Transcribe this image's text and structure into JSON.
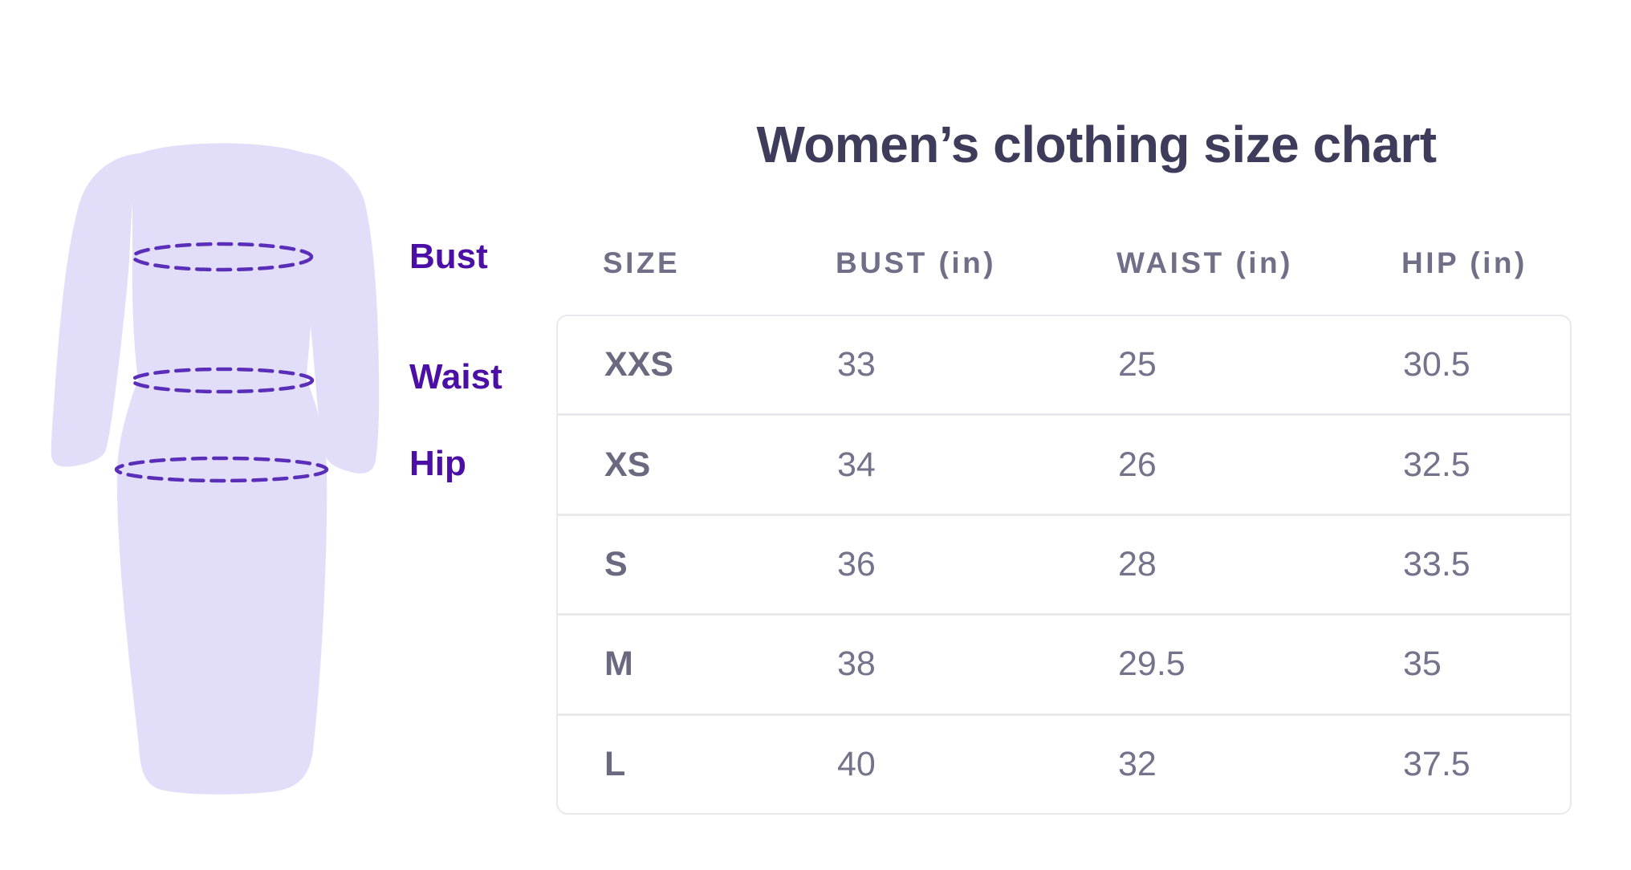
{
  "title": "Women’s clothing size chart",
  "diagram": {
    "description": "dress-silhouette-with-measurement-lines",
    "labels": [
      {
        "id": "bust",
        "text": "Bust"
      },
      {
        "id": "waist",
        "text": "Waist"
      },
      {
        "id": "hip",
        "text": "Hip"
      }
    ]
  },
  "chart_data": {
    "type": "table",
    "title": "Women’s clothing size chart",
    "columns": [
      "SIZE",
      "BUST (in)",
      "WAIST (in)",
      "HIP (in)"
    ],
    "rows": [
      [
        "XXS",
        "33",
        "25",
        "30.5"
      ],
      [
        "XS",
        "34",
        "26",
        "32.5"
      ],
      [
        "S",
        "36",
        "28",
        "33.5"
      ],
      [
        "M",
        "38",
        "29.5",
        "35"
      ],
      [
        "L",
        "40",
        "32",
        "37.5"
      ]
    ],
    "units": "inches",
    "layout": {
      "grid": false,
      "header_outside_box": true
    }
  },
  "colors": {
    "background": "#ffffff",
    "title_text": "#3d3d5b",
    "label_purple": "#4c0fa6",
    "measure_line_purple": "#5a2eb8",
    "dress_fill": "#e2defa",
    "header_text": "#716f88",
    "size_text": "#6b6980",
    "value_text": "#75728b",
    "table_border": "#e9e8ec",
    "row_divider": "#eae8ed"
  }
}
